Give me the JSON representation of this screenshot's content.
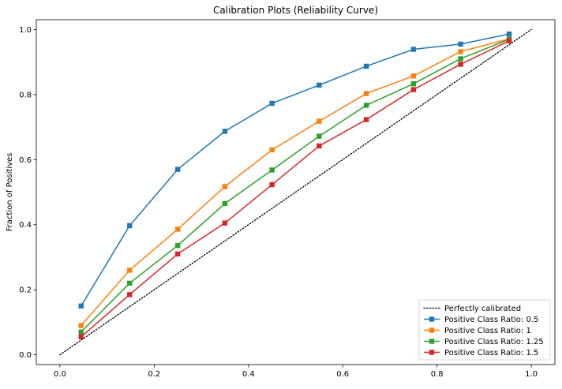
{
  "chart_data": {
    "type": "line",
    "title": "Calibration Plots (Reliability Curve)",
    "xlabel": "",
    "ylabel": "Fraction of Positives",
    "xlim": [
      -0.05,
      1.05
    ],
    "ylim": [
      -0.03,
      1.03
    ],
    "xticks": [
      0.0,
      0.2,
      0.4,
      0.6,
      0.8,
      1.0
    ],
    "xtick_labels": [
      "0.0",
      "0.2",
      "0.4",
      "0.6",
      "0.8",
      "1.0"
    ],
    "yticks": [
      0.0,
      0.2,
      0.4,
      0.6,
      0.8,
      1.0
    ],
    "ytick_labels": [
      "0.0",
      "0.2",
      "0.4",
      "0.6",
      "0.8",
      "1.0"
    ],
    "grid": false,
    "legend_position": "bottom-right",
    "reference_line": {
      "name": "Perfectly calibrated",
      "x": [
        0,
        1
      ],
      "y": [
        0,
        1
      ],
      "color": "#000000",
      "style": "dotted"
    },
    "x": [
      0.045,
      0.148,
      0.25,
      0.35,
      0.45,
      0.55,
      0.65,
      0.75,
      0.85,
      0.953
    ],
    "series": [
      {
        "name": "Positive Class Ratio: 0.5",
        "color": "#1f77b4",
        "values": [
          0.15,
          0.397,
          0.57,
          0.687,
          0.773,
          0.829,
          0.887,
          0.939,
          0.955,
          0.986
        ]
      },
      {
        "name": "Positive Class Ratio: 1",
        "color": "#ff7f0e",
        "values": [
          0.09,
          0.26,
          0.386,
          0.517,
          0.63,
          0.718,
          0.803,
          0.857,
          0.932,
          0.971
        ]
      },
      {
        "name": "Positive Class Ratio: 1.25",
        "color": "#2ca02c",
        "values": [
          0.07,
          0.22,
          0.336,
          0.465,
          0.568,
          0.672,
          0.767,
          0.833,
          0.91,
          0.97
        ]
      },
      {
        "name": "Positive Class Ratio: 1.5",
        "color": "#d62728",
        "values": [
          0.055,
          0.185,
          0.31,
          0.405,
          0.523,
          0.642,
          0.723,
          0.815,
          0.893,
          0.965
        ]
      }
    ]
  }
}
